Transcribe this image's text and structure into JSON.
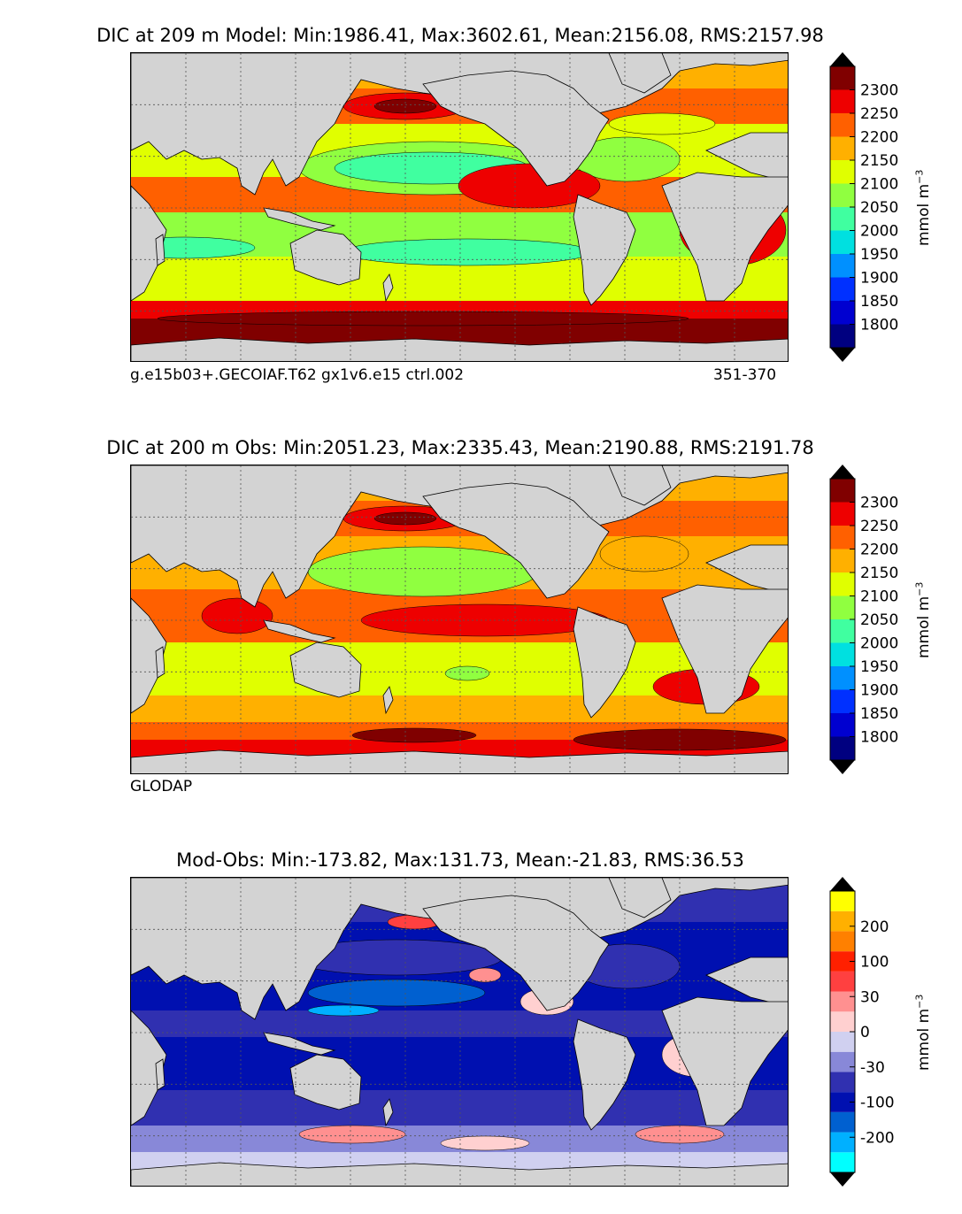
{
  "panels": [
    {
      "id": "model",
      "title": "DIC at 209 m Model: Min:1986.41, Max:3602.61, Mean:2156.08, RMS:2157.98",
      "footer_left": "g.e15b03+.GECOIAF.T62 gx1v6.e15 ctrl.002",
      "footer_right": "351-370",
      "colorbar_label": "mmol m",
      "colorbar_exp": "−3",
      "ticks": [
        "1800",
        "1850",
        "1900",
        "1950",
        "2000",
        "2050",
        "2100",
        "2150",
        "2200",
        "2250",
        "2300"
      ]
    },
    {
      "id": "obs",
      "title": "DIC at 200 m Obs: Min:2051.23, Max:2335.43, Mean:2190.88, RMS:2191.78",
      "footer_left": "GLODAP",
      "footer_right": "",
      "colorbar_label": "mmol m",
      "colorbar_exp": "−3",
      "ticks": [
        "1800",
        "1850",
        "1900",
        "1950",
        "2000",
        "2050",
        "2100",
        "2150",
        "2200",
        "2250",
        "2300"
      ]
    },
    {
      "id": "diff",
      "title": "Mod-Obs: Min:-173.82, Max:131.73, Mean:-21.83, RMS:36.53",
      "footer_left": "",
      "footer_right": "",
      "colorbar_label": "mmol m",
      "colorbar_exp": "−3",
      "ticks": [
        "-200",
        "-100",
        "-30",
        "0",
        "30",
        "100",
        "200"
      ]
    }
  ],
  "colors": {
    "abs_scale": [
      "#000080",
      "#0000d0",
      "#0030ff",
      "#0090ff",
      "#00e0e0",
      "#40ffa0",
      "#90ff40",
      "#e0ff00",
      "#ffb000",
      "#ff6000",
      "#ee0000",
      "#800000"
    ],
    "diff_scale": [
      "#00ffff",
      "#00b0ff",
      "#0060d0",
      "#0010b0",
      "#3030b0",
      "#8888d8",
      "#d0d0f0",
      "#ffd0d0",
      "#ff9090",
      "#ff4040",
      "#ff2000",
      "#ff8000",
      "#ffb000",
      "#ffff00"
    ],
    "land": "#d3d3d3"
  },
  "chart_data": [
    {
      "type": "heatmap",
      "title": "DIC at 209 m Model: Min:1986.41, Max:3602.61, Mean:2156.08, RMS:2157.98",
      "variable": "DIC",
      "depth_m": 209,
      "source": "Model",
      "stats": {
        "min": 1986.41,
        "max": 3602.61,
        "mean": 2156.08,
        "rms": 2157.98
      },
      "colorbar": {
        "label": "mmol m^-3",
        "levels": [
          1800,
          1850,
          1900,
          1950,
          2000,
          2050,
          2100,
          2150,
          2200,
          2250,
          2300
        ],
        "extend": "both"
      },
      "annotations": [
        "g.e15b03+.GECOIAF.T62 gx1v6.e15 ctrl.002",
        "351-370"
      ]
    },
    {
      "type": "heatmap",
      "title": "DIC at 200 m Obs: Min:2051.23, Max:2335.43, Mean:2190.88, RMS:2191.78",
      "variable": "DIC",
      "depth_m": 200,
      "source": "Obs",
      "stats": {
        "min": 2051.23,
        "max": 2335.43,
        "mean": 2190.88,
        "rms": 2191.78
      },
      "colorbar": {
        "label": "mmol m^-3",
        "levels": [
          1800,
          1850,
          1900,
          1950,
          2000,
          2050,
          2100,
          2150,
          2200,
          2250,
          2300
        ],
        "extend": "both"
      },
      "annotations": [
        "GLODAP"
      ]
    },
    {
      "type": "heatmap",
      "title": "Mod-Obs: Min:-173.82, Max:131.73, Mean:-21.83, RMS:36.53",
      "variable": "DIC difference",
      "stats": {
        "min": -173.82,
        "max": 131.73,
        "mean": -21.83,
        "rms": 36.53
      },
      "colorbar": {
        "label": "mmol m^-3",
        "levels": [
          -200,
          -100,
          -30,
          0,
          30,
          100,
          200
        ],
        "extend": "both"
      }
    }
  ]
}
